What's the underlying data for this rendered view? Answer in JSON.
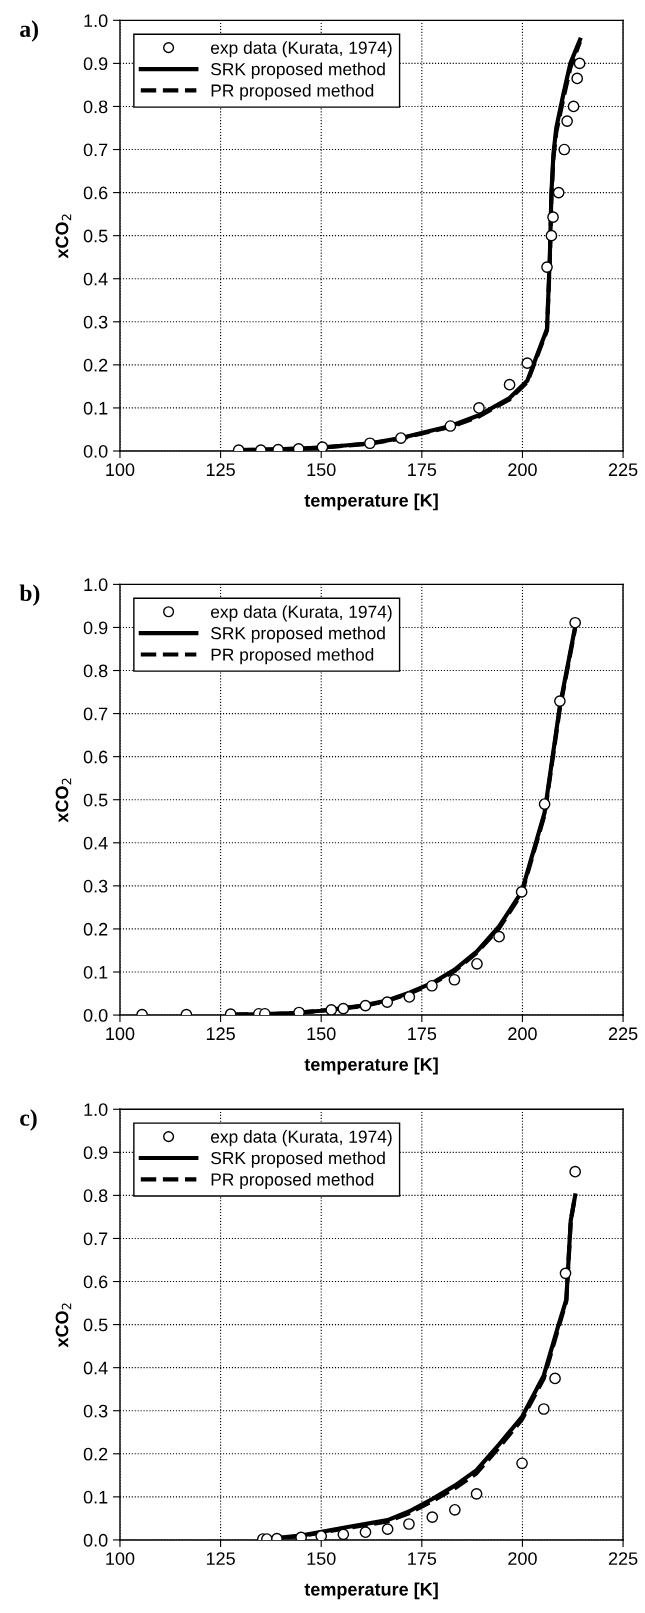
{
  "chart_data": [
    {
      "type": "line",
      "title": "a)",
      "xlabel": "temperature [K]",
      "ylabel": "xCO$_{2}$",
      "xlim": [
        100,
        225
      ],
      "ylim": [
        0,
        1
      ],
      "xticks": [
        100,
        125,
        150,
        175,
        200,
        225
      ],
      "yticks": [
        {
          "value": 0,
          "label": "0.0"
        },
        {
          "value": 0.1,
          "label": "0.1"
        },
        {
          "value": 0.2,
          "label": "0.2"
        },
        {
          "value": 0.3,
          "label": "0.3"
        },
        {
          "value": 0.4,
          "label": "0.4"
        },
        {
          "value": 0.5,
          "label": "0.5"
        },
        {
          "value": 0.6,
          "label": "0.6"
        },
        {
          "value": 0.7,
          "label": "0.7"
        },
        {
          "value": 0.8,
          "label": "0.8"
        },
        {
          "value": 0.9,
          "label": "0.9"
        },
        {
          "value": 1,
          "label": "1.0"
        }
      ],
      "grid": true,
      "legend": "top left",
      "series": [
        {
          "name": "exp data (Kurata, 1974)",
          "type": "scatter",
          "marker": "circle",
          "color": "#000000",
          "x": [
            129.5,
            135,
            139.3,
            144.4,
            150.3,
            162.1,
            169.8,
            182.1,
            189.2,
            196.8,
            201.2,
            206.1,
            207.2,
            207.6,
            209,
            210.4,
            211.1,
            212.7,
            213.6,
            214.2
          ],
          "values": [
            0.002,
            0.002,
            0.003,
            0.005,
            0.009,
            0.018,
            0.03,
            0.058,
            0.1,
            0.154,
            0.204,
            0.427,
            0.5,
            0.543,
            0.6,
            0.7,
            0.766,
            0.8,
            0.865,
            0.9
          ]
        },
        {
          "name": "SRK proposed method",
          "line_style": "solid",
          "color": "#000000",
          "x": [
            129.5,
            140,
            150.3,
            162.1,
            169.8,
            182.1,
            189.2,
            196.8,
            201.2,
            206.1,
            206.8,
            207.2,
            207.7,
            208.4,
            210.2,
            211.9,
            214.3
          ],
          "values": [
            0.002,
            0.004,
            0.008,
            0.018,
            0.03,
            0.058,
            0.083,
            0.123,
            0.163,
            0.283,
            0.45,
            0.6,
            0.69,
            0.75,
            0.83,
            0.9,
            0.955
          ]
        },
        {
          "name": "PR proposed method",
          "line_style": "dashed",
          "color": "#000000",
          "x": [
            129.5,
            140,
            150.3,
            162.1,
            169.8,
            182.1,
            189.2,
            196.8,
            201.2,
            206.1,
            206.8,
            207.2,
            207.7,
            208.4,
            210.2,
            211.9,
            214.3
          ],
          "values": [
            0.002,
            0.004,
            0.008,
            0.017,
            0.029,
            0.056,
            0.08,
            0.12,
            0.16,
            0.28,
            0.44,
            0.59,
            0.68,
            0.74,
            0.82,
            0.89,
            0.95
          ]
        }
      ]
    },
    {
      "type": "line",
      "title": "b)",
      "xlabel": "temperature [K]",
      "ylabel": "xCO$_{2}$",
      "xlim": [
        100,
        225
      ],
      "ylim": [
        0,
        1
      ],
      "xticks": [
        100,
        125,
        150,
        175,
        200,
        225
      ],
      "yticks": [
        {
          "value": 0,
          "label": "0.0"
        },
        {
          "value": 0.1,
          "label": "0.1"
        },
        {
          "value": 0.2,
          "label": "0.2"
        },
        {
          "value": 0.3,
          "label": "0.3"
        },
        {
          "value": 0.4,
          "label": "0.4"
        },
        {
          "value": 0.5,
          "label": "0.5"
        },
        {
          "value": 0.6,
          "label": "0.6"
        },
        {
          "value": 0.7,
          "label": "0.7"
        },
        {
          "value": 0.8,
          "label": "0.8"
        },
        {
          "value": 0.9,
          "label": "0.9"
        },
        {
          "value": 1,
          "label": "1.0"
        }
      ],
      "grid": true,
      "legend": "top left",
      "series": [
        {
          "name": "exp data (Kurata, 1974)",
          "type": "scatter",
          "marker": "circle",
          "color": "#000000",
          "x": [
            105.5,
            116.5,
            127.5,
            134.5,
            136,
            144.5,
            152.5,
            155.5,
            161,
            166.4,
            171.9,
            177.5,
            183.1,
            188.7,
            194.2,
            199.8,
            205.5,
            209.3,
            213.1
          ],
          "values": [
            0.001,
            0.001,
            0.002,
            0.003,
            0.003,
            0.006,
            0.012,
            0.015,
            0.022,
            0.03,
            0.042,
            0.068,
            0.082,
            0.119,
            0.182,
            0.286,
            0.49,
            0.729,
            0.911
          ]
        },
        {
          "name": "SRK proposed method",
          "line_style": "solid",
          "color": "#000000",
          "x": [
            128,
            135,
            142,
            150,
            160.4,
            166.4,
            171.9,
            177.5,
            183.1,
            188.7,
            194.2,
            199.8,
            205.5,
            209.3,
            213.1
          ],
          "values": [
            0.001,
            0.002,
            0.004,
            0.01,
            0.022,
            0.034,
            0.052,
            0.074,
            0.105,
            0.148,
            0.206,
            0.286,
            0.47,
            0.718,
            0.902
          ]
        },
        {
          "name": "PR proposed method",
          "line_style": "dashed",
          "color": "#000000",
          "x": [
            128,
            135,
            142,
            150,
            160.4,
            166.4,
            171.9,
            177.5,
            183.1,
            188.7,
            194.2,
            199.8,
            205.5,
            209.3,
            213.1
          ],
          "values": [
            0.001,
            0.002,
            0.004,
            0.01,
            0.021,
            0.033,
            0.05,
            0.072,
            0.102,
            0.145,
            0.202,
            0.282,
            0.465,
            0.712,
            0.898
          ]
        }
      ]
    },
    {
      "type": "line",
      "title": "c)",
      "xlabel": "temperature [K]",
      "ylabel": "xCO$_{2}$",
      "xlim": [
        100,
        225
      ],
      "ylim": [
        0,
        1
      ],
      "xticks": [
        100,
        125,
        150,
        175,
        200,
        225
      ],
      "yticks": [
        {
          "value": 0,
          "label": "0.0"
        },
        {
          "value": 0.1,
          "label": "0.1"
        },
        {
          "value": 0.2,
          "label": "0.2"
        },
        {
          "value": 0.3,
          "label": "0.3"
        },
        {
          "value": 0.4,
          "label": "0.4"
        },
        {
          "value": 0.5,
          "label": "0.5"
        },
        {
          "value": 0.6,
          "label": "0.6"
        },
        {
          "value": 0.7,
          "label": "0.7"
        },
        {
          "value": 0.8,
          "label": "0.8"
        },
        {
          "value": 0.9,
          "label": "0.9"
        },
        {
          "value": 1,
          "label": "1.0"
        }
      ],
      "grid": true,
      "legend": "top left",
      "series": [
        {
          "name": "exp data (Kurata, 1974)",
          "type": "scatter",
          "marker": "circle",
          "color": "#000000",
          "x": [
            135.5,
            136.5,
            139,
            145,
            150,
            155.5,
            161,
            166.5,
            171.8,
            177.6,
            183.2,
            188.6,
            199.9,
            205.3,
            208.1,
            210.7,
            213.1
          ],
          "values": [
            0.002,
            0.002,
            0.003,
            0.006,
            0.009,
            0.013,
            0.018,
            0.025,
            0.037,
            0.053,
            0.07,
            0.107,
            0.178,
            0.304,
            0.375,
            0.619,
            0.855
          ]
        },
        {
          "name": "SRK proposed method",
          "line_style": "solid",
          "color": "#000000",
          "x": [
            136,
            145,
            156.6,
            166.5,
            171.8,
            177.6,
            183.2,
            188.6,
            194.2,
            199.9,
            205.3,
            208.8,
            210.9,
            212,
            213.1
          ],
          "values": [
            0.002,
            0.01,
            0.03,
            0.046,
            0.066,
            0.095,
            0.126,
            0.162,
            0.222,
            0.286,
            0.382,
            0.494,
            0.558,
            0.742,
            0.8
          ]
        },
        {
          "name": "PR proposed method",
          "line_style": "dashed",
          "color": "#000000",
          "x": [
            136,
            145,
            156.6,
            166.5,
            171.8,
            177.6,
            183.2,
            188.6,
            194.2,
            199.9,
            205.3,
            208.8,
            210.9,
            212,
            213.1
          ],
          "values": [
            0.002,
            0.009,
            0.028,
            0.043,
            0.062,
            0.09,
            0.12,
            0.155,
            0.215,
            0.28,
            0.375,
            0.488,
            0.555,
            0.74,
            0.8
          ]
        }
      ]
    }
  ]
}
